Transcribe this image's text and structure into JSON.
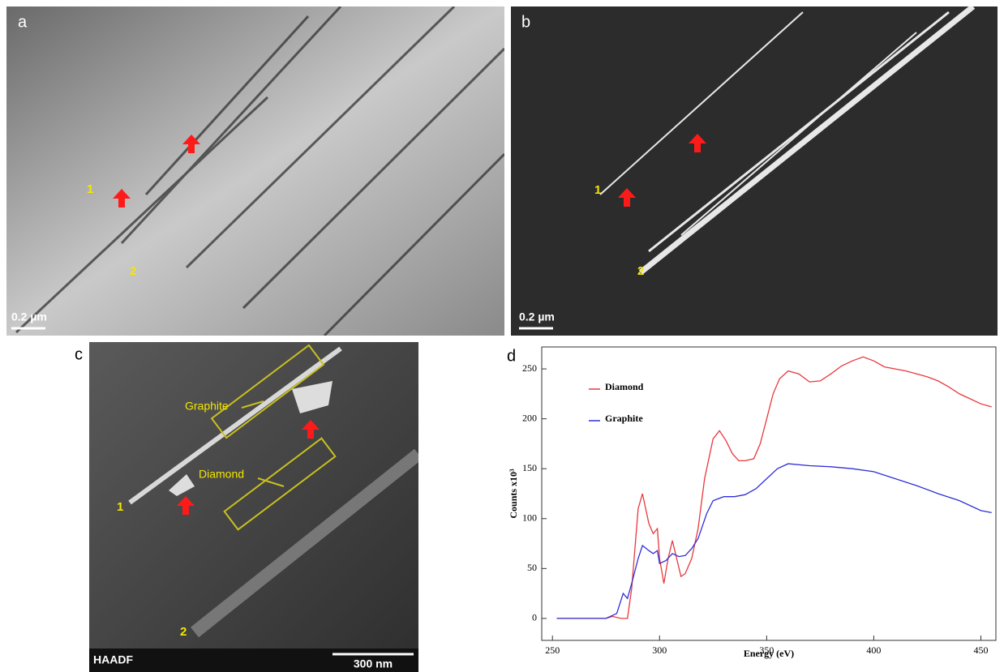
{
  "panels": {
    "a": {
      "label": "a",
      "markers": [
        "1",
        "2"
      ],
      "scale": "0.2 µm"
    },
    "b": {
      "label": "b",
      "markers": [
        "1",
        "2"
      ],
      "scale": "0.2 µm"
    },
    "c": {
      "label": "c",
      "markers": [
        "1",
        "2"
      ],
      "detector": "HAADF",
      "scale": "300 nm",
      "annotations": [
        "Graphite",
        "Diamond"
      ]
    },
    "d": {
      "label": "d"
    }
  },
  "chart_data": {
    "type": "line",
    "xlabel": "Energy (eV)",
    "ylabel": "Counts x10³",
    "xlim": [
      245,
      457
    ],
    "ylim": [
      -22,
      272
    ],
    "xticks": [
      250,
      300,
      350,
      400,
      450
    ],
    "yticks": [
      0,
      50,
      100,
      150,
      200,
      250
    ],
    "legend": "upper left",
    "series": [
      {
        "name": "Diamond",
        "color": "#e8383d",
        "x": [
          252,
          260,
          270,
          275,
          278,
          282,
          285,
          287,
          290,
          292,
          295,
          297,
          299,
          300,
          302,
          304,
          306,
          308,
          310,
          312,
          315,
          318,
          321,
          325,
          328,
          331,
          334,
          337,
          340,
          344,
          347,
          350,
          353,
          356,
          360,
          365,
          370,
          375,
          380,
          385,
          390,
          395,
          400,
          405,
          410,
          415,
          420,
          425,
          430,
          435,
          440,
          445,
          450,
          455
        ],
        "values": [
          0,
          0,
          0,
          0,
          2,
          0,
          0,
          30,
          110,
          125,
          95,
          85,
          90,
          60,
          35,
          60,
          78,
          60,
          42,
          45,
          60,
          90,
          140,
          180,
          188,
          178,
          165,
          158,
          158,
          160,
          175,
          200,
          225,
          240,
          248,
          245,
          237,
          238,
          245,
          253,
          258,
          262,
          258,
          252,
          250,
          248,
          245,
          242,
          238,
          232,
          225,
          220,
          215,
          212
        ]
      },
      {
        "name": "Graphite",
        "color": "#2f2fd8",
        "x": [
          252,
          260,
          270,
          275,
          280,
          283,
          285,
          287,
          290,
          292,
          295,
          297,
          299,
          300,
          303,
          306,
          309,
          312,
          315,
          318,
          322,
          325,
          330,
          335,
          340,
          345,
          350,
          355,
          360,
          370,
          380,
          390,
          400,
          410,
          420,
          430,
          440,
          450,
          455
        ],
        "values": [
          0,
          0,
          0,
          0,
          5,
          25,
          20,
          35,
          60,
          73,
          68,
          65,
          68,
          55,
          58,
          65,
          62,
          63,
          70,
          80,
          105,
          118,
          122,
          122,
          124,
          130,
          140,
          150,
          155,
          153,
          152,
          150,
          147,
          140,
          133,
          125,
          118,
          108,
          106
        ]
      }
    ]
  }
}
